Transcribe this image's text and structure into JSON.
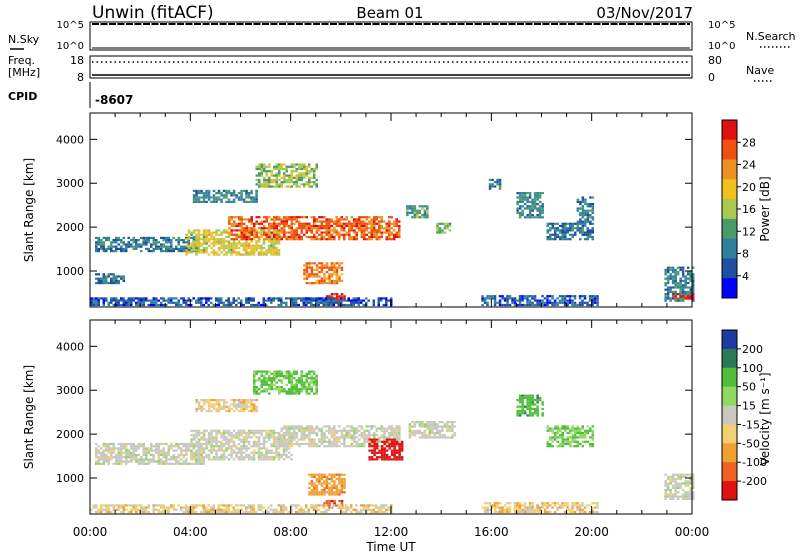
{
  "header": {
    "station": "Unwin (fitACF)",
    "beam": "Beam 01",
    "date": "03/Nov/2017"
  },
  "top_panels": {
    "nsky_label": "N.Sky",
    "nsearch_label": "N.Search",
    "freq_label_1": "Freq.",
    "freq_label_2": "[MHz]",
    "nave_label": "Nave",
    "cpid_label": "CPID",
    "cpid_value": "-8607",
    "noise_left_ticks": [
      "10^5",
      "10^0"
    ],
    "noise_right_ticks": [
      "10^5",
      "10^0"
    ],
    "freq_ticks": [
      "18",
      "8"
    ],
    "nave_ticks": [
      "80",
      "0"
    ]
  },
  "x_axis": {
    "label": "Time UT",
    "ticks": [
      "00:00",
      "04:00",
      "08:00",
      "12:00",
      "16:00",
      "20:00",
      "00:00"
    ],
    "tick_hours": [
      0,
      4,
      8,
      12,
      16,
      20,
      24
    ]
  },
  "colors": {
    "power_scale": [
      "#0000ff",
      "#1f4fa0",
      "#2f7f9f",
      "#4a9a6a",
      "#a8c850",
      "#f0c020",
      "#f09020",
      "#f05010",
      "#e01010"
    ],
    "velocity_scale": [
      "#1e3ca0",
      "#2a7a5a",
      "#4fbf3a",
      "#90d860",
      "#c8c8c0",
      "#f0d070",
      "#f0a030",
      "#f06020",
      "#e01010"
    ]
  },
  "chart_data": [
    {
      "type": "heatmap",
      "title": "Power",
      "ylabel": "Slant Range [km]",
      "xlabel": "",
      "xlim": [
        0,
        24
      ],
      "ylim": [
        180,
        4600
      ],
      "yticks": [
        "1000",
        "2000",
        "3000",
        "4000"
      ],
      "ytick_values": [
        1000,
        2000,
        3000,
        4000
      ],
      "colorbar": {
        "label": "Power [dB]",
        "ticks": [
          "4",
          "8",
          "12",
          "16",
          "20",
          "24",
          "28"
        ],
        "range": [
          0,
          32
        ]
      },
      "regions": [
        {
          "t0": 0.2,
          "t1": 4.3,
          "r0": 1450,
          "r1": 1780,
          "level": 9
        },
        {
          "t0": 3.8,
          "t1": 7.5,
          "r0": 1350,
          "r1": 1950,
          "level": 18
        },
        {
          "t0": 5.5,
          "t1": 12.3,
          "r0": 1700,
          "r1": 2250,
          "level": 26
        },
        {
          "t0": 8.5,
          "t1": 10.0,
          "r0": 700,
          "r1": 1200,
          "level": 24
        },
        {
          "t0": 9.4,
          "t1": 10.1,
          "r0": 300,
          "r1": 500,
          "level": 30
        },
        {
          "t0": 0.2,
          "t1": 1.3,
          "r0": 700,
          "r1": 950,
          "level": 8
        },
        {
          "t0": 4.1,
          "t1": 6.6,
          "r0": 2550,
          "r1": 2850,
          "level": 10
        },
        {
          "t0": 6.6,
          "t1": 9.0,
          "r0": 2900,
          "r1": 3450,
          "level": 15
        },
        {
          "t0": 12.6,
          "t1": 13.4,
          "r0": 2200,
          "r1": 2500,
          "level": 12
        },
        {
          "t0": 13.8,
          "t1": 14.3,
          "r0": 1850,
          "r1": 2100,
          "level": 14
        },
        {
          "t0": 15.9,
          "t1": 16.3,
          "r0": 2850,
          "r1": 3100,
          "level": 8
        },
        {
          "t0": 17.0,
          "t1": 18.0,
          "r0": 2200,
          "r1": 2800,
          "level": 10
        },
        {
          "t0": 18.2,
          "t1": 20.0,
          "r0": 1700,
          "r1": 2100,
          "level": 8
        },
        {
          "t0": 19.4,
          "t1": 20.0,
          "r0": 2100,
          "r1": 2700,
          "level": 9
        },
        {
          "t0": 15.6,
          "t1": 20.2,
          "r0": 200,
          "r1": 450,
          "level": 6
        },
        {
          "t0": 22.9,
          "t1": 24.0,
          "r0": 300,
          "r1": 1100,
          "level": 9
        },
        {
          "t0": 23.2,
          "t1": 24.0,
          "r0": 350,
          "r1": 500,
          "level": 30
        },
        {
          "t0": 0.0,
          "t1": 12.0,
          "r0": 200,
          "r1": 400,
          "level": 6
        }
      ]
    },
    {
      "type": "heatmap",
      "title": "Velocity",
      "ylabel": "Slant Range [km]",
      "xlabel": "Time UT",
      "xlim": [
        0,
        24
      ],
      "ylim": [
        180,
        4600
      ],
      "yticks": [
        "1000",
        "2000",
        "3000",
        "4000"
      ],
      "ytick_values": [
        1000,
        2000,
        3000,
        4000
      ],
      "colorbar": {
        "label": "Velocity [m s⁻¹]",
        "ticks": [
          "200",
          "100",
          "50",
          "15",
          "-15",
          "-50",
          "-100",
          "-200"
        ],
        "range": [
          -250,
          250
        ]
      },
      "regions": [
        {
          "t0": 0.2,
          "t1": 4.5,
          "r0": 1300,
          "r1": 1800,
          "level": 0
        },
        {
          "t0": 4.0,
          "t1": 8.0,
          "r0": 1400,
          "r1": 2100,
          "level": 0
        },
        {
          "t0": 7.5,
          "t1": 12.3,
          "r0": 1700,
          "r1": 2200,
          "level": 0
        },
        {
          "t0": 11.1,
          "t1": 12.4,
          "r0": 1400,
          "r1": 1900,
          "level": -210
        },
        {
          "t0": 9.3,
          "t1": 10.0,
          "r0": 300,
          "r1": 500,
          "level": -150
        },
        {
          "t0": 8.7,
          "t1": 10.1,
          "r0": 600,
          "r1": 1100,
          "level": -60
        },
        {
          "t0": 4.2,
          "t1": 6.6,
          "r0": 2500,
          "r1": 2800,
          "level": -20
        },
        {
          "t0": 6.5,
          "t1": 9.0,
          "r0": 2900,
          "r1": 3450,
          "level": 40
        },
        {
          "t0": 12.7,
          "t1": 14.5,
          "r0": 1900,
          "r1": 2300,
          "level": 0
        },
        {
          "t0": 17.0,
          "t1": 18.0,
          "r0": 2400,
          "r1": 2900,
          "level": 60
        },
        {
          "t0": 18.2,
          "t1": 20.0,
          "r0": 1700,
          "r1": 2200,
          "level": 30
        },
        {
          "t0": 15.6,
          "t1": 20.2,
          "r0": 200,
          "r1": 450,
          "level": -25
        },
        {
          "t0": 22.9,
          "t1": 24.0,
          "r0": 500,
          "r1": 1100,
          "level": 0
        },
        {
          "t0": 0.0,
          "t1": 12.0,
          "r0": 200,
          "r1": 400,
          "level": -20
        }
      ]
    }
  ]
}
